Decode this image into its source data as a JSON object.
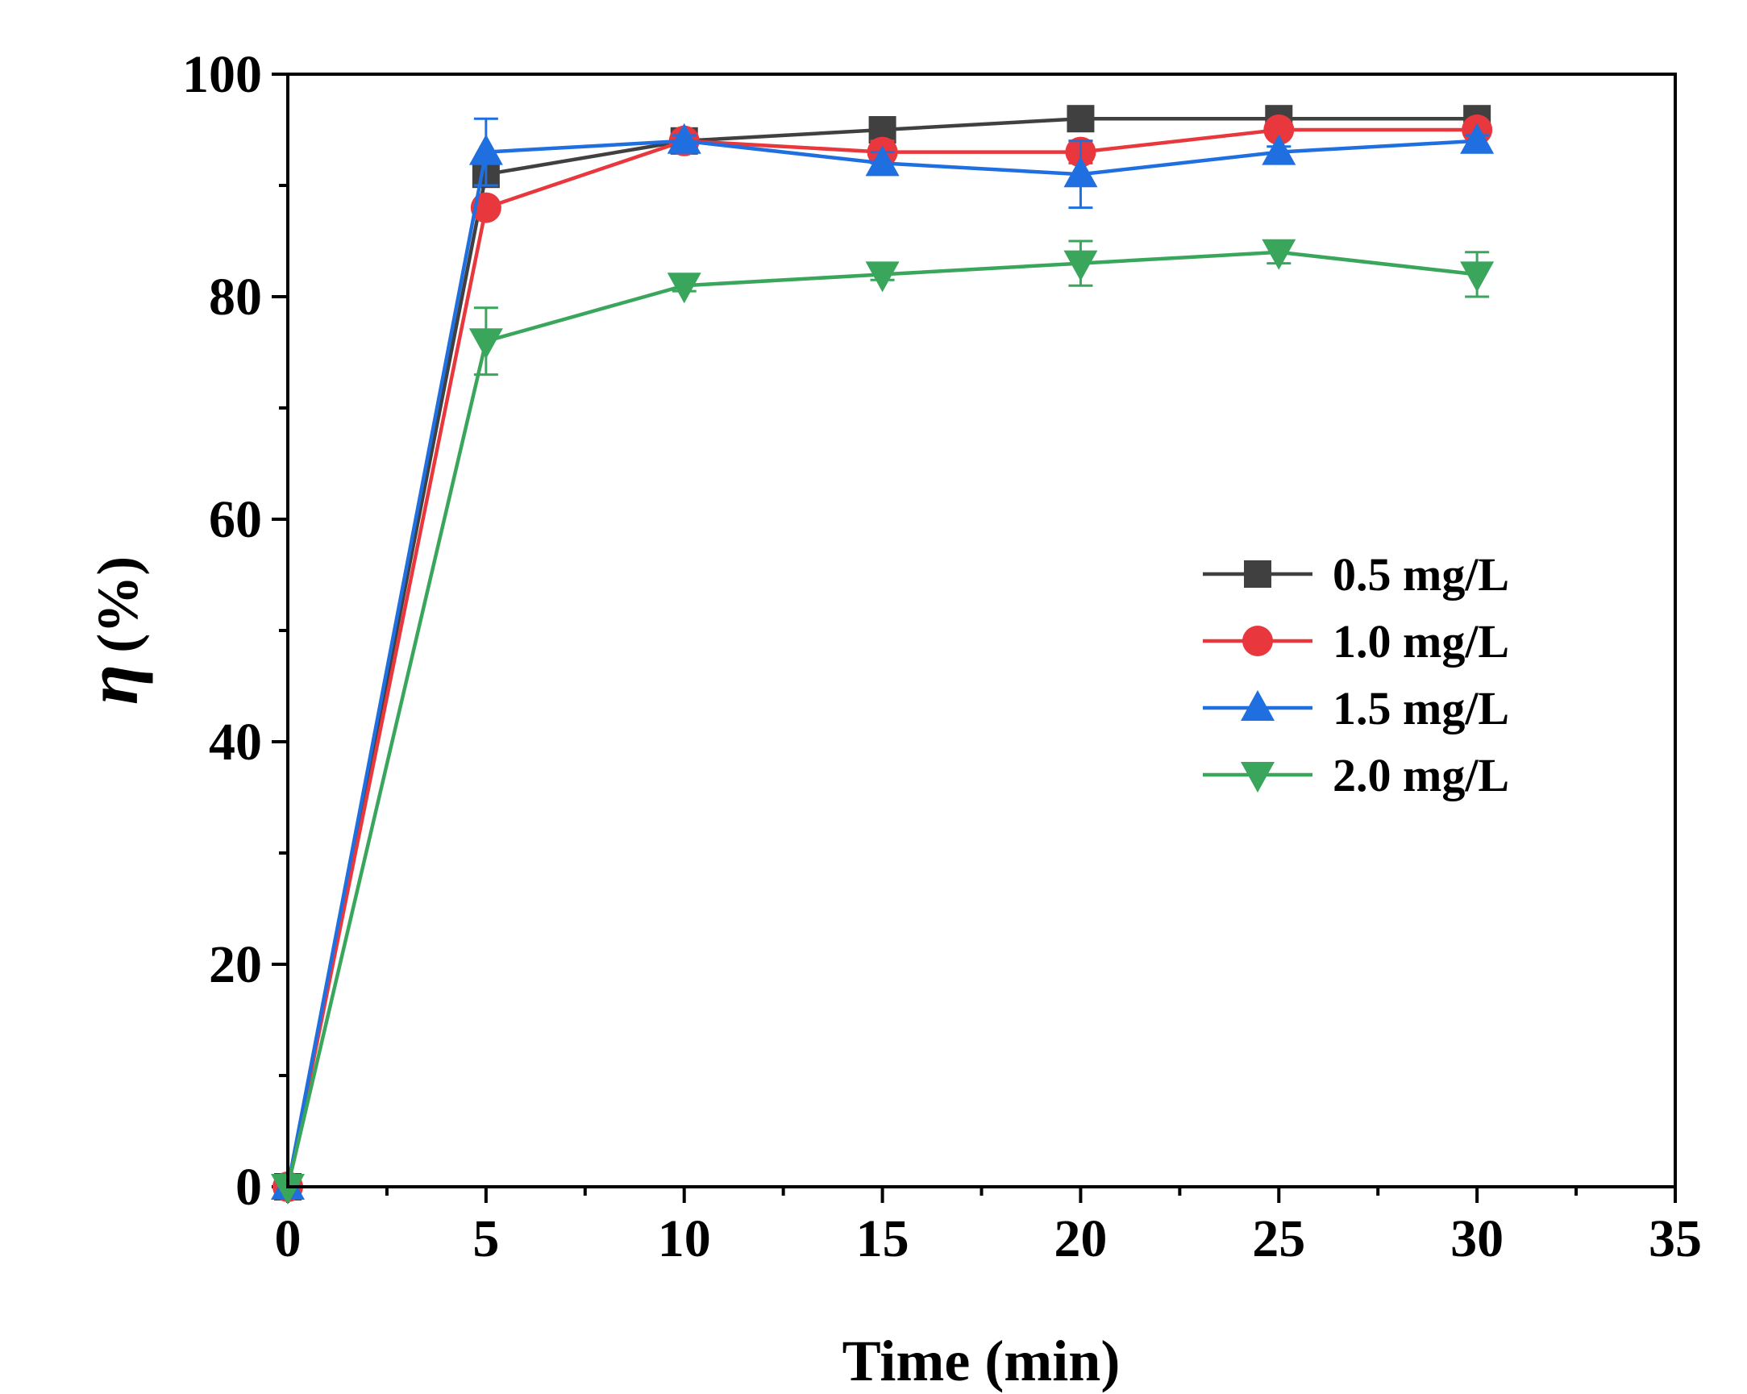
{
  "chart_data": {
    "type": "line",
    "title": "",
    "xlabel": "Time (min)",
    "ylabel_symbol": "η",
    "ylabel_unit": "(%)",
    "xlim": [
      0,
      35
    ],
    "ylim": [
      0,
      100
    ],
    "x_ticks": [
      0,
      5,
      10,
      15,
      20,
      25,
      30,
      35
    ],
    "x_minor_step": 2.5,
    "y_ticks": [
      0,
      20,
      40,
      60,
      80,
      100
    ],
    "y_minor_step": 10,
    "grid": false,
    "legend_position": "center-right",
    "x": [
      0,
      5,
      10,
      15,
      20,
      25,
      30
    ],
    "series": [
      {
        "name": "0.5 mg/L",
        "color": "#404040",
        "marker": "square",
        "values": [
          0,
          91,
          94,
          95,
          96,
          96,
          96
        ],
        "errors": [
          0,
          0,
          0,
          0,
          0,
          0,
          0
        ]
      },
      {
        "name": "1.0 mg/L",
        "color": "#e8383d",
        "marker": "circle",
        "values": [
          0,
          88,
          94,
          93,
          93,
          95,
          95
        ],
        "errors": [
          0,
          0.6,
          0,
          1,
          1,
          0.5,
          0.5
        ]
      },
      {
        "name": "1.5 mg/L",
        "color": "#1f6fe0",
        "marker": "triangle-up",
        "values": [
          0,
          93,
          94,
          92,
          91,
          93,
          94
        ],
        "errors": [
          0,
          3,
          0.5,
          1,
          3,
          0.5,
          0.5
        ]
      },
      {
        "name": "2.0 mg/L",
        "color": "#3aa65c",
        "marker": "triangle-down",
        "values": [
          0,
          76,
          81,
          82,
          83,
          84,
          82
        ],
        "errors": [
          0,
          3,
          0.5,
          0.5,
          2,
          1,
          2
        ]
      }
    ]
  }
}
